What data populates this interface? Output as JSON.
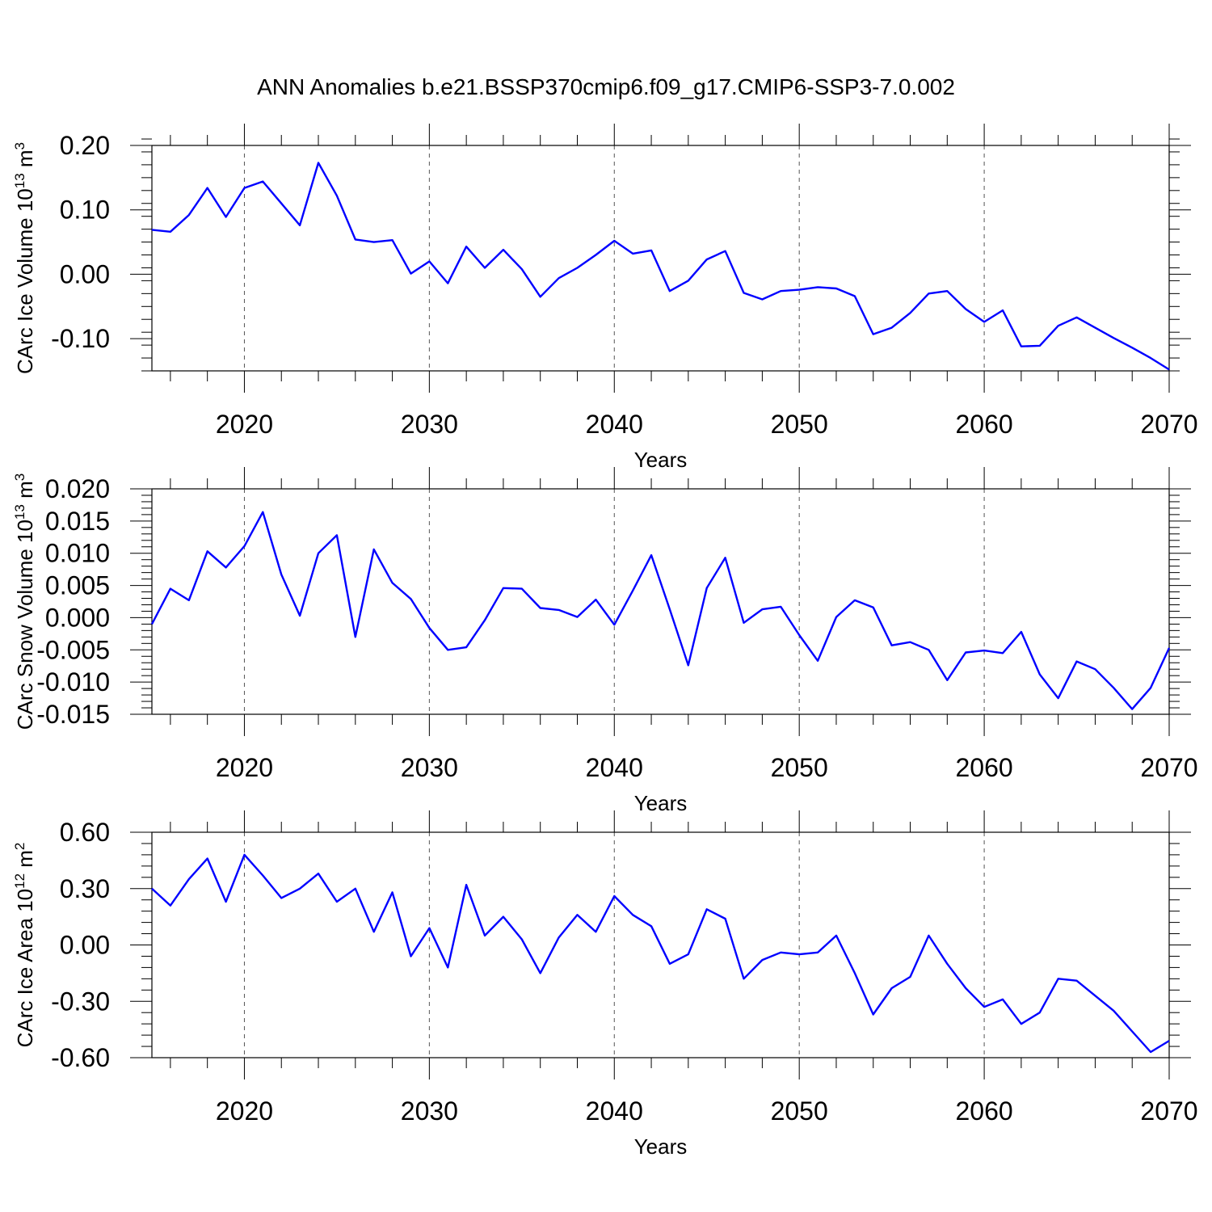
{
  "chart_data": [
    {
      "type": "line",
      "title": "ANN Anomalies b.e21.BSSP370cmip6.f09_g17.CMIP6-SSP3-7.0.002",
      "xlabel": "Years",
      "ylabel": "CArc Ice Volume 10",
      "ylabel_exp": "13",
      "ylabel_unit": "m",
      "ylabel_unit_exp": "3",
      "xlim": [
        2015,
        2070
      ],
      "ylim": [
        -0.15,
        0.2
      ],
      "xticks": [
        2020,
        2030,
        2040,
        2050,
        2060,
        2070
      ],
      "yticks": [
        0.2,
        0.1,
        0.0,
        -0.1
      ],
      "ytick_labels": [
        "0.20",
        "0.10",
        "0.00",
        "-0.10"
      ],
      "grid": "vertical dashed at major x ticks",
      "color": "#0000ff",
      "x": [
        2015,
        2016,
        2017,
        2018,
        2019,
        2020,
        2021,
        2022,
        2023,
        2024,
        2025,
        2026,
        2027,
        2028,
        2029,
        2030,
        2031,
        2032,
        2033,
        2034,
        2035,
        2036,
        2037,
        2038,
        2039,
        2040,
        2041,
        2042,
        2043,
        2044,
        2045,
        2046,
        2047,
        2048,
        2049,
        2050,
        2051,
        2052,
        2053,
        2054,
        2055,
        2056,
        2057,
        2058,
        2059,
        2060,
        2061,
        2062,
        2063,
        2064,
        2065,
        2066,
        2067,
        2068,
        2069,
        2070
      ],
      "values": [
        0.069,
        0.066,
        0.092,
        0.134,
        0.089,
        0.134,
        0.144,
        0.11,
        0.076,
        0.173,
        0.122,
        0.054,
        0.05,
        0.053,
        0.001,
        0.02,
        -0.014,
        0.043,
        0.01,
        0.038,
        0.008,
        -0.035,
        -0.006,
        0.01,
        0.03,
        0.052,
        0.032,
        0.037,
        -0.026,
        -0.01,
        0.023,
        0.036,
        -0.029,
        -0.039,
        -0.026,
        -0.024,
        -0.02,
        -0.022,
        -0.034,
        -0.093,
        -0.083,
        -0.06,
        -0.03,
        -0.026,
        -0.054,
        -0.074,
        -0.056,
        -0.112,
        -0.111,
        -0.08,
        -0.067,
        -0.083,
        -0.099,
        -0.114,
        -0.13,
        -0.148
      ]
    },
    {
      "type": "line",
      "xlabel": "Years",
      "ylabel": "CArc Snow Volume 10",
      "ylabel_exp": "13",
      "ylabel_unit": "m",
      "ylabel_unit_exp": "3",
      "xlim": [
        2015,
        2070
      ],
      "ylim": [
        -0.015,
        0.02
      ],
      "xticks": [
        2020,
        2030,
        2040,
        2050,
        2060,
        2070
      ],
      "yticks": [
        0.02,
        0.015,
        0.01,
        0.005,
        0.0,
        -0.005,
        -0.01,
        -0.015
      ],
      "ytick_labels": [
        "0.020",
        "0.015",
        "0.010",
        "0.005",
        "0.000",
        "-0.005",
        "-0.010",
        "-0.015"
      ],
      "grid": "vertical dashed at major x ticks",
      "color": "#0000ff",
      "x": [
        2015,
        2016,
        2017,
        2018,
        2019,
        2020,
        2021,
        2022,
        2023,
        2024,
        2025,
        2026,
        2027,
        2028,
        2029,
        2030,
        2031,
        2032,
        2033,
        2034,
        2035,
        2036,
        2037,
        2038,
        2039,
        2040,
        2041,
        2042,
        2043,
        2044,
        2045,
        2046,
        2047,
        2048,
        2049,
        2050,
        2051,
        2052,
        2053,
        2054,
        2055,
        2056,
        2057,
        2058,
        2059,
        2060,
        2061,
        2062,
        2063,
        2064,
        2065,
        2066,
        2067,
        2068,
        2069,
        2070
      ],
      "values": [
        -0.001,
        0.0045,
        0.0027,
        0.0103,
        0.0078,
        0.0111,
        0.0164,
        0.0067,
        0.0003,
        0.01,
        0.0128,
        -0.003,
        0.0106,
        0.0054,
        0.0029,
        -0.0016,
        -0.005,
        -0.0046,
        -0.0004,
        0.0046,
        0.0045,
        0.0015,
        0.0012,
        0.0001,
        0.0028,
        -0.0011,
        0.0042,
        0.0097,
        0.0013,
        -0.0074,
        0.0046,
        0.0093,
        -0.0008,
        0.0013,
        0.0017,
        -0.0027,
        -0.0067,
        0.0001,
        0.0027,
        0.0016,
        -0.0043,
        -0.0038,
        -0.005,
        -0.0097,
        -0.0054,
        -0.0051,
        -0.0055,
        -0.0022,
        -0.0088,
        -0.0125,
        -0.0068,
        -0.008,
        -0.0109,
        -0.0142,
        -0.0109,
        -0.0047
      ]
    },
    {
      "type": "line",
      "xlabel": "Years",
      "ylabel": "CArc Ice Area 10",
      "ylabel_exp": "12",
      "ylabel_unit": "m",
      "ylabel_unit_exp": "2",
      "xlim": [
        2015,
        2070
      ],
      "ylim": [
        -0.6,
        0.6
      ],
      "xticks": [
        2020,
        2030,
        2040,
        2050,
        2060,
        2070
      ],
      "yticks": [
        0.6,
        0.3,
        0.0,
        -0.3,
        -0.6
      ],
      "ytick_labels": [
        "0.60",
        "0.30",
        "0.00",
        "-0.30",
        "-0.60"
      ],
      "grid": "vertical dashed at major x ticks",
      "color": "#0000ff",
      "x": [
        2015,
        2016,
        2017,
        2018,
        2019,
        2020,
        2021,
        2022,
        2023,
        2024,
        2025,
        2026,
        2027,
        2028,
        2029,
        2030,
        2031,
        2032,
        2033,
        2034,
        2035,
        2036,
        2037,
        2038,
        2039,
        2040,
        2041,
        2042,
        2043,
        2044,
        2045,
        2046,
        2047,
        2048,
        2049,
        2050,
        2051,
        2052,
        2053,
        2054,
        2055,
        2056,
        2057,
        2058,
        2059,
        2060,
        2061,
        2062,
        2063,
        2064,
        2065,
        2066,
        2067,
        2068,
        2069,
        2070
      ],
      "values": [
        0.3,
        0.21,
        0.35,
        0.46,
        0.23,
        0.48,
        0.37,
        0.25,
        0.3,
        0.38,
        0.23,
        0.3,
        0.07,
        0.28,
        -0.06,
        0.09,
        -0.12,
        0.32,
        0.05,
        0.15,
        0.03,
        -0.15,
        0.04,
        0.16,
        0.07,
        0.26,
        0.16,
        0.1,
        -0.1,
        -0.05,
        0.19,
        0.14,
        -0.18,
        -0.08,
        -0.04,
        -0.05,
        -0.04,
        0.05,
        -0.15,
        -0.37,
        -0.23,
        -0.17,
        0.05,
        -0.1,
        -0.23,
        -0.33,
        -0.29,
        -0.42,
        -0.36,
        -0.18,
        -0.19,
        -0.27,
        -0.35,
        -0.46,
        -0.57,
        -0.51
      ]
    }
  ]
}
